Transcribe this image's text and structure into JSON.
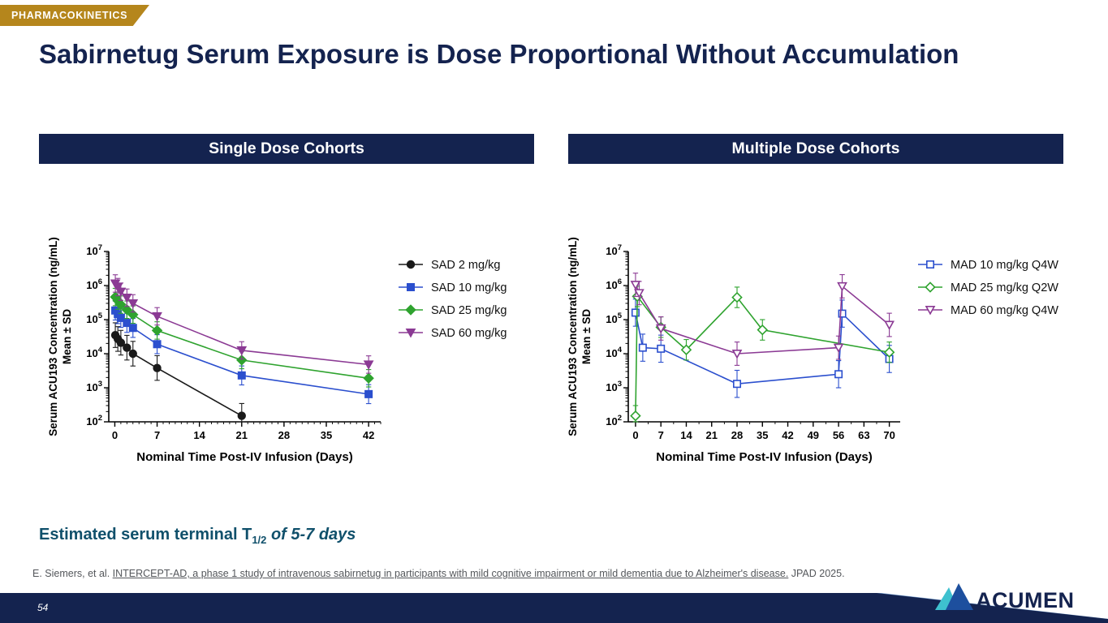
{
  "tag": {
    "label": "PHARMACOKINETICS"
  },
  "title": "Sabirnetug Serum Exposure is Dose Proportional Without Accumulation",
  "panels": {
    "left": {
      "header": "Single Dose Cohorts"
    },
    "right": {
      "header": "Multiple Dose Cohorts"
    }
  },
  "chart_data": [
    {
      "type": "line",
      "title": "Single Dose Cohorts",
      "xlabel": "Nominal Time Post-IV Infusion (Days)",
      "ylabel": "Serum ACU193 Concentration (ng/mL)",
      "ylabel2": "Mean ± SD",
      "x_ticks": [
        0,
        7,
        14,
        21,
        28,
        35,
        42
      ],
      "x_minor_step": 1,
      "xlim": [
        -1,
        44
      ],
      "ylim_log10": [
        2,
        7
      ],
      "y_scale": "log",
      "legend_position": "right",
      "error": "SD",
      "series": [
        {
          "name": "SAD 2 mg/kg",
          "color": "#1a1a1a",
          "marker": "circle",
          "filled": true,
          "err_factor": 2.3,
          "points": [
            [
              0.08,
              35000
            ],
            [
              0.5,
              27000
            ],
            [
              1,
              21000
            ],
            [
              2,
              15000
            ],
            [
              3,
              10000
            ],
            [
              7,
              3800
            ],
            [
              21,
              150
            ]
          ]
        },
        {
          "name": "SAD 10 mg/kg",
          "color": "#2b4fce",
          "marker": "square",
          "filled": true,
          "err_factor": 1.9,
          "points": [
            [
              0.08,
              185000
            ],
            [
              0.5,
              145000
            ],
            [
              1,
              112000
            ],
            [
              2,
              80000
            ],
            [
              3,
              57000
            ],
            [
              7,
              19000
            ],
            [
              21,
              2300
            ],
            [
              42,
              650
            ]
          ]
        },
        {
          "name": "SAD 25 mg/kg",
          "color": "#2fa32f",
          "marker": "diamond",
          "filled": true,
          "err_factor": 1.8,
          "points": [
            [
              0.08,
              460000
            ],
            [
              0.5,
              360000
            ],
            [
              1,
              275000
            ],
            [
              2,
              195000
            ],
            [
              3,
              140000
            ],
            [
              7,
              48000
            ],
            [
              21,
              6500
            ],
            [
              42,
              1900
            ]
          ]
        },
        {
          "name": "SAD 60 mg/kg",
          "color": "#8b3a94",
          "marker": "triangle-down",
          "filled": true,
          "err_factor": 1.8,
          "points": [
            [
              0.08,
              1150000
            ],
            [
              0.5,
              900000
            ],
            [
              1,
              660000
            ],
            [
              2,
              440000
            ],
            [
              3,
              300000
            ],
            [
              7,
              125000
            ],
            [
              21,
              12500
            ],
            [
              42,
              4800
            ]
          ]
        }
      ]
    },
    {
      "type": "line",
      "title": "Multiple Dose Cohorts",
      "xlabel": "Nominal Time Post-IV Infusion (Days)",
      "ylabel": "Serum ACU193 Concentration (ng/mL)",
      "ylabel2": "Mean ± SD",
      "x_ticks": [
        0,
        7,
        14,
        21,
        28,
        35,
        42,
        49,
        56,
        63,
        70
      ],
      "x_minor_step": 3.5,
      "xlim": [
        -2,
        73
      ],
      "ylim_log10": [
        2,
        7
      ],
      "y_scale": "log",
      "legend_position": "right",
      "error": "SD",
      "series": [
        {
          "name": "MAD 10 mg/kg Q4W",
          "color": "#2b4fce",
          "marker": "square",
          "filled": false,
          "err_factor": 2.5,
          "points": [
            [
              0,
              160000
            ],
            [
              2,
              15000
            ],
            [
              7,
              14000
            ],
            [
              28,
              1300
            ],
            [
              56,
              2500
            ],
            [
              57,
              150000
            ],
            [
              70,
              7000
            ]
          ]
        },
        {
          "name": "MAD 25 mg/kg Q2W",
          "color": "#2fa32f",
          "marker": "diamond",
          "filled": false,
          "err_factor": 2.0,
          "points": [
            [
              0,
              150
            ],
            [
              0.5,
              480000
            ],
            [
              7,
              60000
            ],
            [
              14,
              13000
            ],
            [
              28,
              450000
            ],
            [
              35,
              50000
            ],
            [
              70,
              11000
            ]
          ]
        },
        {
          "name": "MAD 60 mg/kg Q4W",
          "color": "#8b3a94",
          "marker": "triangle-down",
          "filled": false,
          "err_factor": 2.2,
          "points": [
            [
              0,
              1050000
            ],
            [
              1,
              600000
            ],
            [
              7,
              55000
            ],
            [
              28,
              10000
            ],
            [
              56,
              15000
            ],
            [
              57,
              950000
            ],
            [
              70,
              70000
            ]
          ]
        }
      ]
    }
  ],
  "summary": {
    "prefix": "Estimated serum terminal T",
    "sub": "1/2",
    "suffix": " of 5-7 days"
  },
  "citation": {
    "prefix": "E. Siemers, et al. ",
    "underlined": "INTERCEPT-AD, a phase 1 study of intravenous sabirnetug in participants with mild cognitive impairment or mild dementia due to Alzheimer's disease.",
    "suffix": " JPAD 2025."
  },
  "footer": {
    "page_number": "54"
  },
  "logo": {
    "text": "ACUMEN"
  },
  "colors": {
    "navy": "#14234f",
    "gold": "#b5861c",
    "teal_text": "#10506b",
    "light_stripe": "#7fa8d8",
    "logo_teal": "#3ec1cf",
    "logo_blue": "#1d4f9e"
  }
}
